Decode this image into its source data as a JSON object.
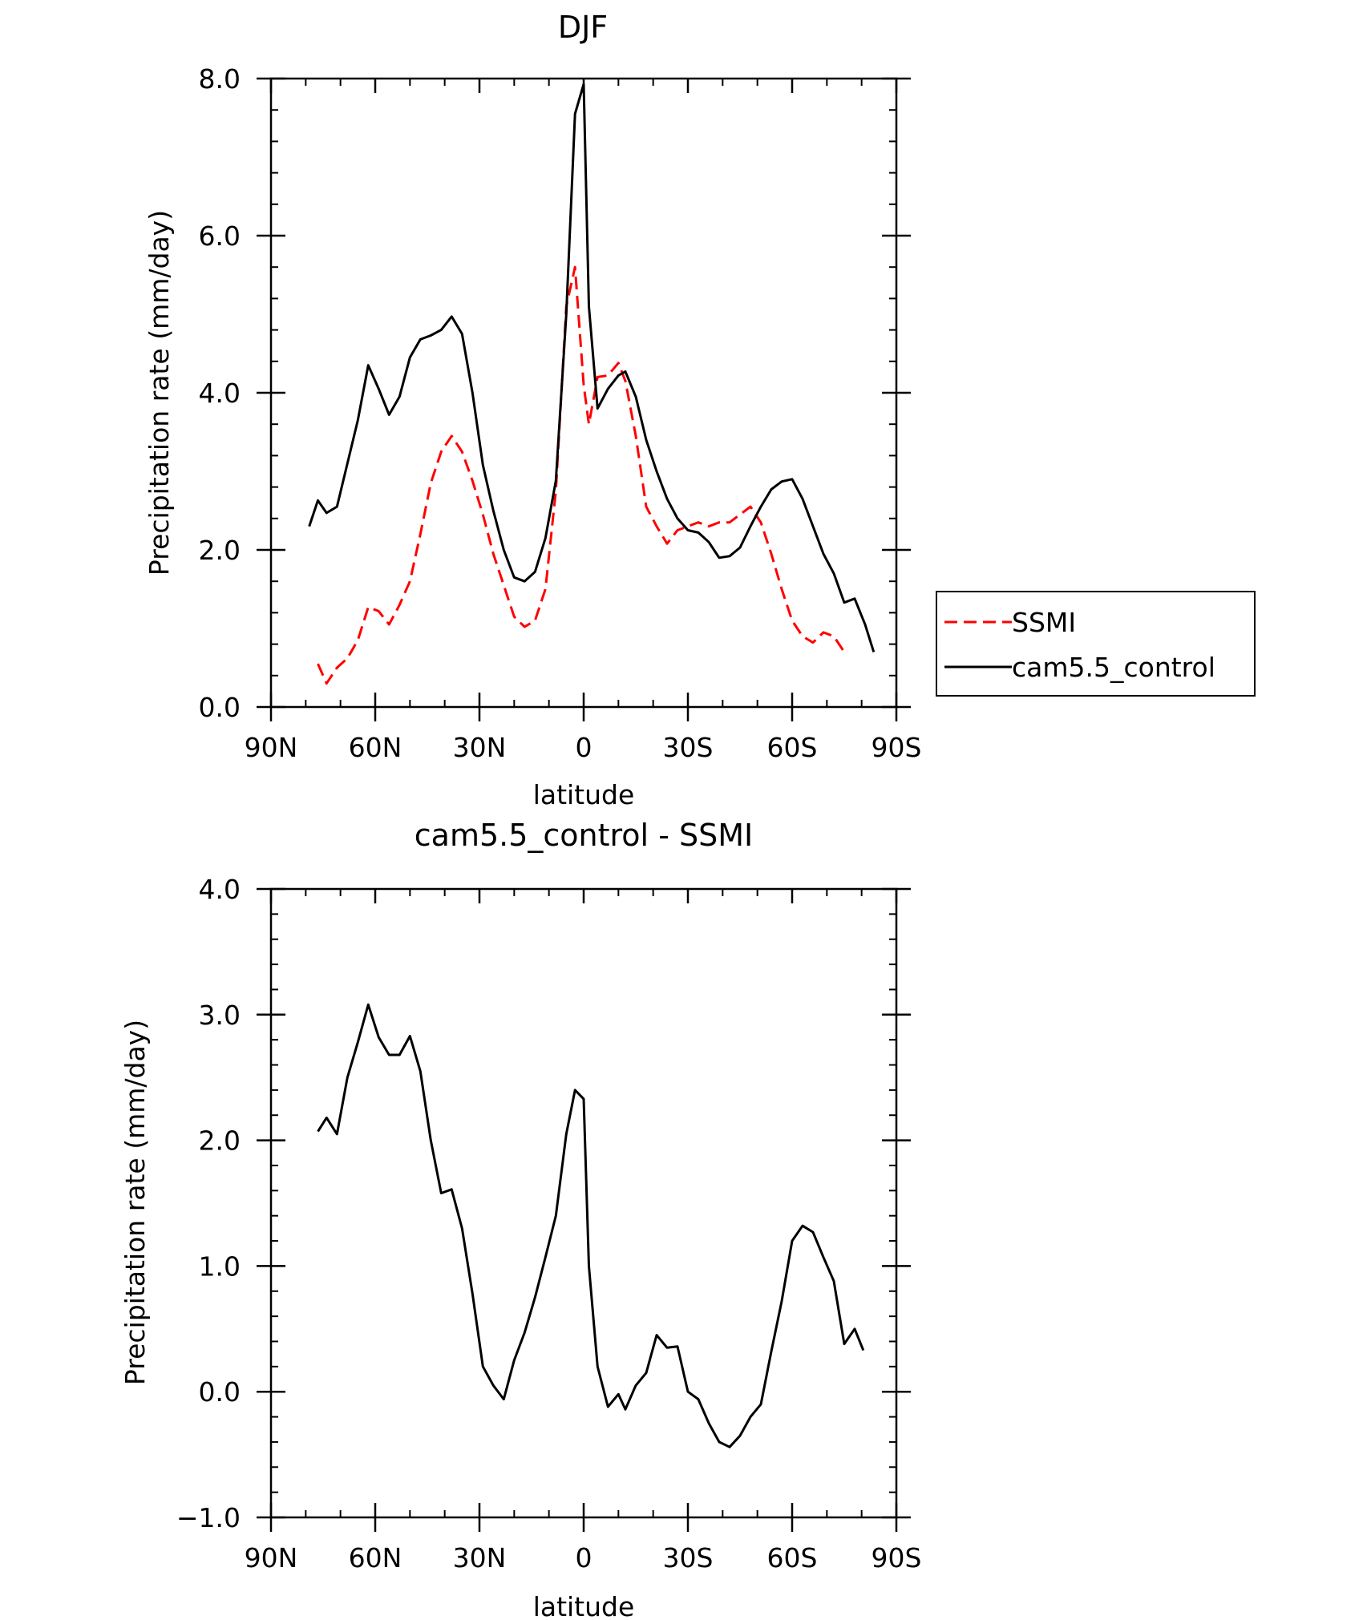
{
  "chart_data": [
    {
      "type": "line",
      "title": "DJF",
      "xlabel": "latitude",
      "ylabel": "Precipitation rate (mm/day)",
      "xlim": [
        90,
        -90
      ],
      "ylim": [
        0,
        8
      ],
      "x_ticks": [
        90,
        60,
        30,
        0,
        -30,
        -60,
        -90
      ],
      "x_tick_labels": [
        "90N",
        "60N",
        "30N",
        "0",
        "30S",
        "60S",
        "90S"
      ],
      "y_ticks": [
        0,
        2,
        4,
        6,
        8
      ],
      "y_tick_labels": [
        "0.0",
        "2.0",
        "4.0",
        "6.0",
        "8.0"
      ],
      "legend_position": "right",
      "series": [
        {
          "name": "SSMI",
          "color": "#ff0000",
          "dash": "dashed",
          "points": [
            [
              76.5,
              0.55
            ],
            [
              74,
              0.3
            ],
            [
              71,
              0.5
            ],
            [
              68,
              0.62
            ],
            [
              65,
              0.85
            ],
            [
              62,
              1.27
            ],
            [
              59,
              1.22
            ],
            [
              56,
              1.05
            ],
            [
              53,
              1.3
            ],
            [
              50,
              1.6
            ],
            [
              47,
              2.2
            ],
            [
              44,
              2.85
            ],
            [
              41,
              3.25
            ],
            [
              38,
              3.45
            ],
            [
              35,
              3.25
            ],
            [
              32,
              2.88
            ],
            [
              29,
              2.45
            ],
            [
              26,
              1.95
            ],
            [
              23,
              1.55
            ],
            [
              20,
              1.15
            ],
            [
              17,
              1.02
            ],
            [
              14,
              1.1
            ],
            [
              11,
              1.5
            ],
            [
              8,
              2.75
            ],
            [
              5,
              5.1
            ],
            [
              2.5,
              5.6
            ],
            [
              0,
              4.1
            ],
            [
              -1.5,
              3.6
            ],
            [
              -4,
              4.2
            ],
            [
              -7,
              4.22
            ],
            [
              -10,
              4.38
            ],
            [
              -12,
              4.15
            ],
            [
              -15,
              3.45
            ],
            [
              -18,
              2.55
            ],
            [
              -21,
              2.3
            ],
            [
              -24,
              2.08
            ],
            [
              -27,
              2.25
            ],
            [
              -30,
              2.3
            ],
            [
              -33,
              2.35
            ],
            [
              -36,
              2.3
            ],
            [
              -39,
              2.35
            ],
            [
              -42,
              2.35
            ],
            [
              -45,
              2.45
            ],
            [
              -48,
              2.55
            ],
            [
              -51,
              2.35
            ],
            [
              -54,
              1.95
            ],
            [
              -57,
              1.5
            ],
            [
              -60,
              1.1
            ],
            [
              -63,
              0.9
            ],
            [
              -66,
              0.82
            ],
            [
              -69,
              0.95
            ],
            [
              -72,
              0.9
            ],
            [
              -75,
              0.7
            ]
          ]
        },
        {
          "name": "cam5.5_control",
          "color": "#000000",
          "dash": "solid",
          "points": [
            [
              79,
              2.3
            ],
            [
              76.5,
              2.63
            ],
            [
              74,
              2.47
            ],
            [
              71,
              2.55
            ],
            [
              68,
              3.1
            ],
            [
              65,
              3.65
            ],
            [
              62,
              4.35
            ],
            [
              59,
              4.05
            ],
            [
              56,
              3.72
            ],
            [
              53,
              3.95
            ],
            [
              50,
              4.45
            ],
            [
              47,
              4.68
            ],
            [
              44,
              4.73
            ],
            [
              41,
              4.8
            ],
            [
              38,
              4.97
            ],
            [
              35,
              4.75
            ],
            [
              32,
              4.0
            ],
            [
              29,
              3.08
            ],
            [
              26,
              2.5
            ],
            [
              23,
              2.0
            ],
            [
              20,
              1.65
            ],
            [
              17,
              1.6
            ],
            [
              14,
              1.72
            ],
            [
              11,
              2.15
            ],
            [
              8,
              2.88
            ],
            [
              5,
              5.0
            ],
            [
              2.5,
              7.55
            ],
            [
              0,
              7.93
            ],
            [
              -1.5,
              5.1
            ],
            [
              -4,
              3.8
            ],
            [
              -7,
              4.05
            ],
            [
              -10,
              4.22
            ],
            [
              -12,
              4.27
            ],
            [
              -15,
              3.95
            ],
            [
              -18,
              3.4
            ],
            [
              -21,
              3.0
            ],
            [
              -24,
              2.65
            ],
            [
              -27,
              2.4
            ],
            [
              -30,
              2.25
            ],
            [
              -33,
              2.22
            ],
            [
              -36,
              2.1
            ],
            [
              -39,
              1.9
            ],
            [
              -42,
              1.92
            ],
            [
              -45,
              2.03
            ],
            [
              -48,
              2.3
            ],
            [
              -51,
              2.55
            ],
            [
              -54,
              2.77
            ],
            [
              -57,
              2.87
            ],
            [
              -60,
              2.9
            ],
            [
              -63,
              2.65
            ],
            [
              -66,
              2.3
            ],
            [
              -69,
              1.95
            ],
            [
              -72,
              1.7
            ],
            [
              -75,
              1.33
            ],
            [
              -78,
              1.38
            ],
            [
              -81,
              1.05
            ],
            [
              -83.5,
              0.7
            ]
          ]
        }
      ]
    },
    {
      "type": "line",
      "title": "cam5.5_control - SSMI",
      "xlabel": "latitude",
      "ylabel": "Precipitation rate (mm/day)",
      "xlim": [
        90,
        -90
      ],
      "ylim": [
        -1,
        4
      ],
      "x_ticks": [
        90,
        60,
        30,
        0,
        -30,
        -60,
        -90
      ],
      "x_tick_labels": [
        "90N",
        "60N",
        "30N",
        "0",
        "30S",
        "60S",
        "90S"
      ],
      "y_ticks": [
        -1,
        0,
        1,
        2,
        3,
        4
      ],
      "y_tick_labels": [
        "−1.0",
        "0.0",
        "1.0",
        "2.0",
        "3.0",
        "4.0"
      ],
      "series": [
        {
          "name": "cam5.5_control - SSMI",
          "color": "#000000",
          "dash": "solid",
          "points": [
            [
              76.5,
              2.07
            ],
            [
              74,
              2.18
            ],
            [
              71,
              2.05
            ],
            [
              68,
              2.5
            ],
            [
              65,
              2.78
            ],
            [
              62,
              3.08
            ],
            [
              59,
              2.82
            ],
            [
              56,
              2.68
            ],
            [
              53,
              2.68
            ],
            [
              50,
              2.83
            ],
            [
              47,
              2.55
            ],
            [
              44,
              2.0
            ],
            [
              41,
              1.58
            ],
            [
              38,
              1.61
            ],
            [
              35,
              1.3
            ],
            [
              32,
              0.78
            ],
            [
              29,
              0.2
            ],
            [
              26,
              0.05
            ],
            [
              23,
              -0.06
            ],
            [
              20,
              0.25
            ],
            [
              17,
              0.47
            ],
            [
              14,
              0.75
            ],
            [
              11,
              1.07
            ],
            [
              8,
              1.4
            ],
            [
              5,
              2.05
            ],
            [
              2.5,
              2.4
            ],
            [
              0,
              2.33
            ],
            [
              -1.5,
              1.0
            ],
            [
              -4,
              0.2
            ],
            [
              -7,
              -0.12
            ],
            [
              -10,
              -0.02
            ],
            [
              -12,
              -0.14
            ],
            [
              -15,
              0.05
            ],
            [
              -18,
              0.15
            ],
            [
              -21,
              0.45
            ],
            [
              -24,
              0.35
            ],
            [
              -27,
              0.36
            ],
            [
              -30,
              0.0
            ],
            [
              -33,
              -0.06
            ],
            [
              -36,
              -0.25
            ],
            [
              -39,
              -0.4
            ],
            [
              -42,
              -0.44
            ],
            [
              -45,
              -0.35
            ],
            [
              -48,
              -0.2
            ],
            [
              -51,
              -0.1
            ],
            [
              -54,
              0.32
            ],
            [
              -57,
              0.72
            ],
            [
              -60,
              1.2
            ],
            [
              -63,
              1.32
            ],
            [
              -66,
              1.27
            ],
            [
              -69,
              1.07
            ],
            [
              -72,
              0.88
            ],
            [
              -75,
              0.38
            ],
            [
              -78,
              0.5
            ],
            [
              -80.5,
              0.33
            ]
          ]
        }
      ]
    }
  ]
}
